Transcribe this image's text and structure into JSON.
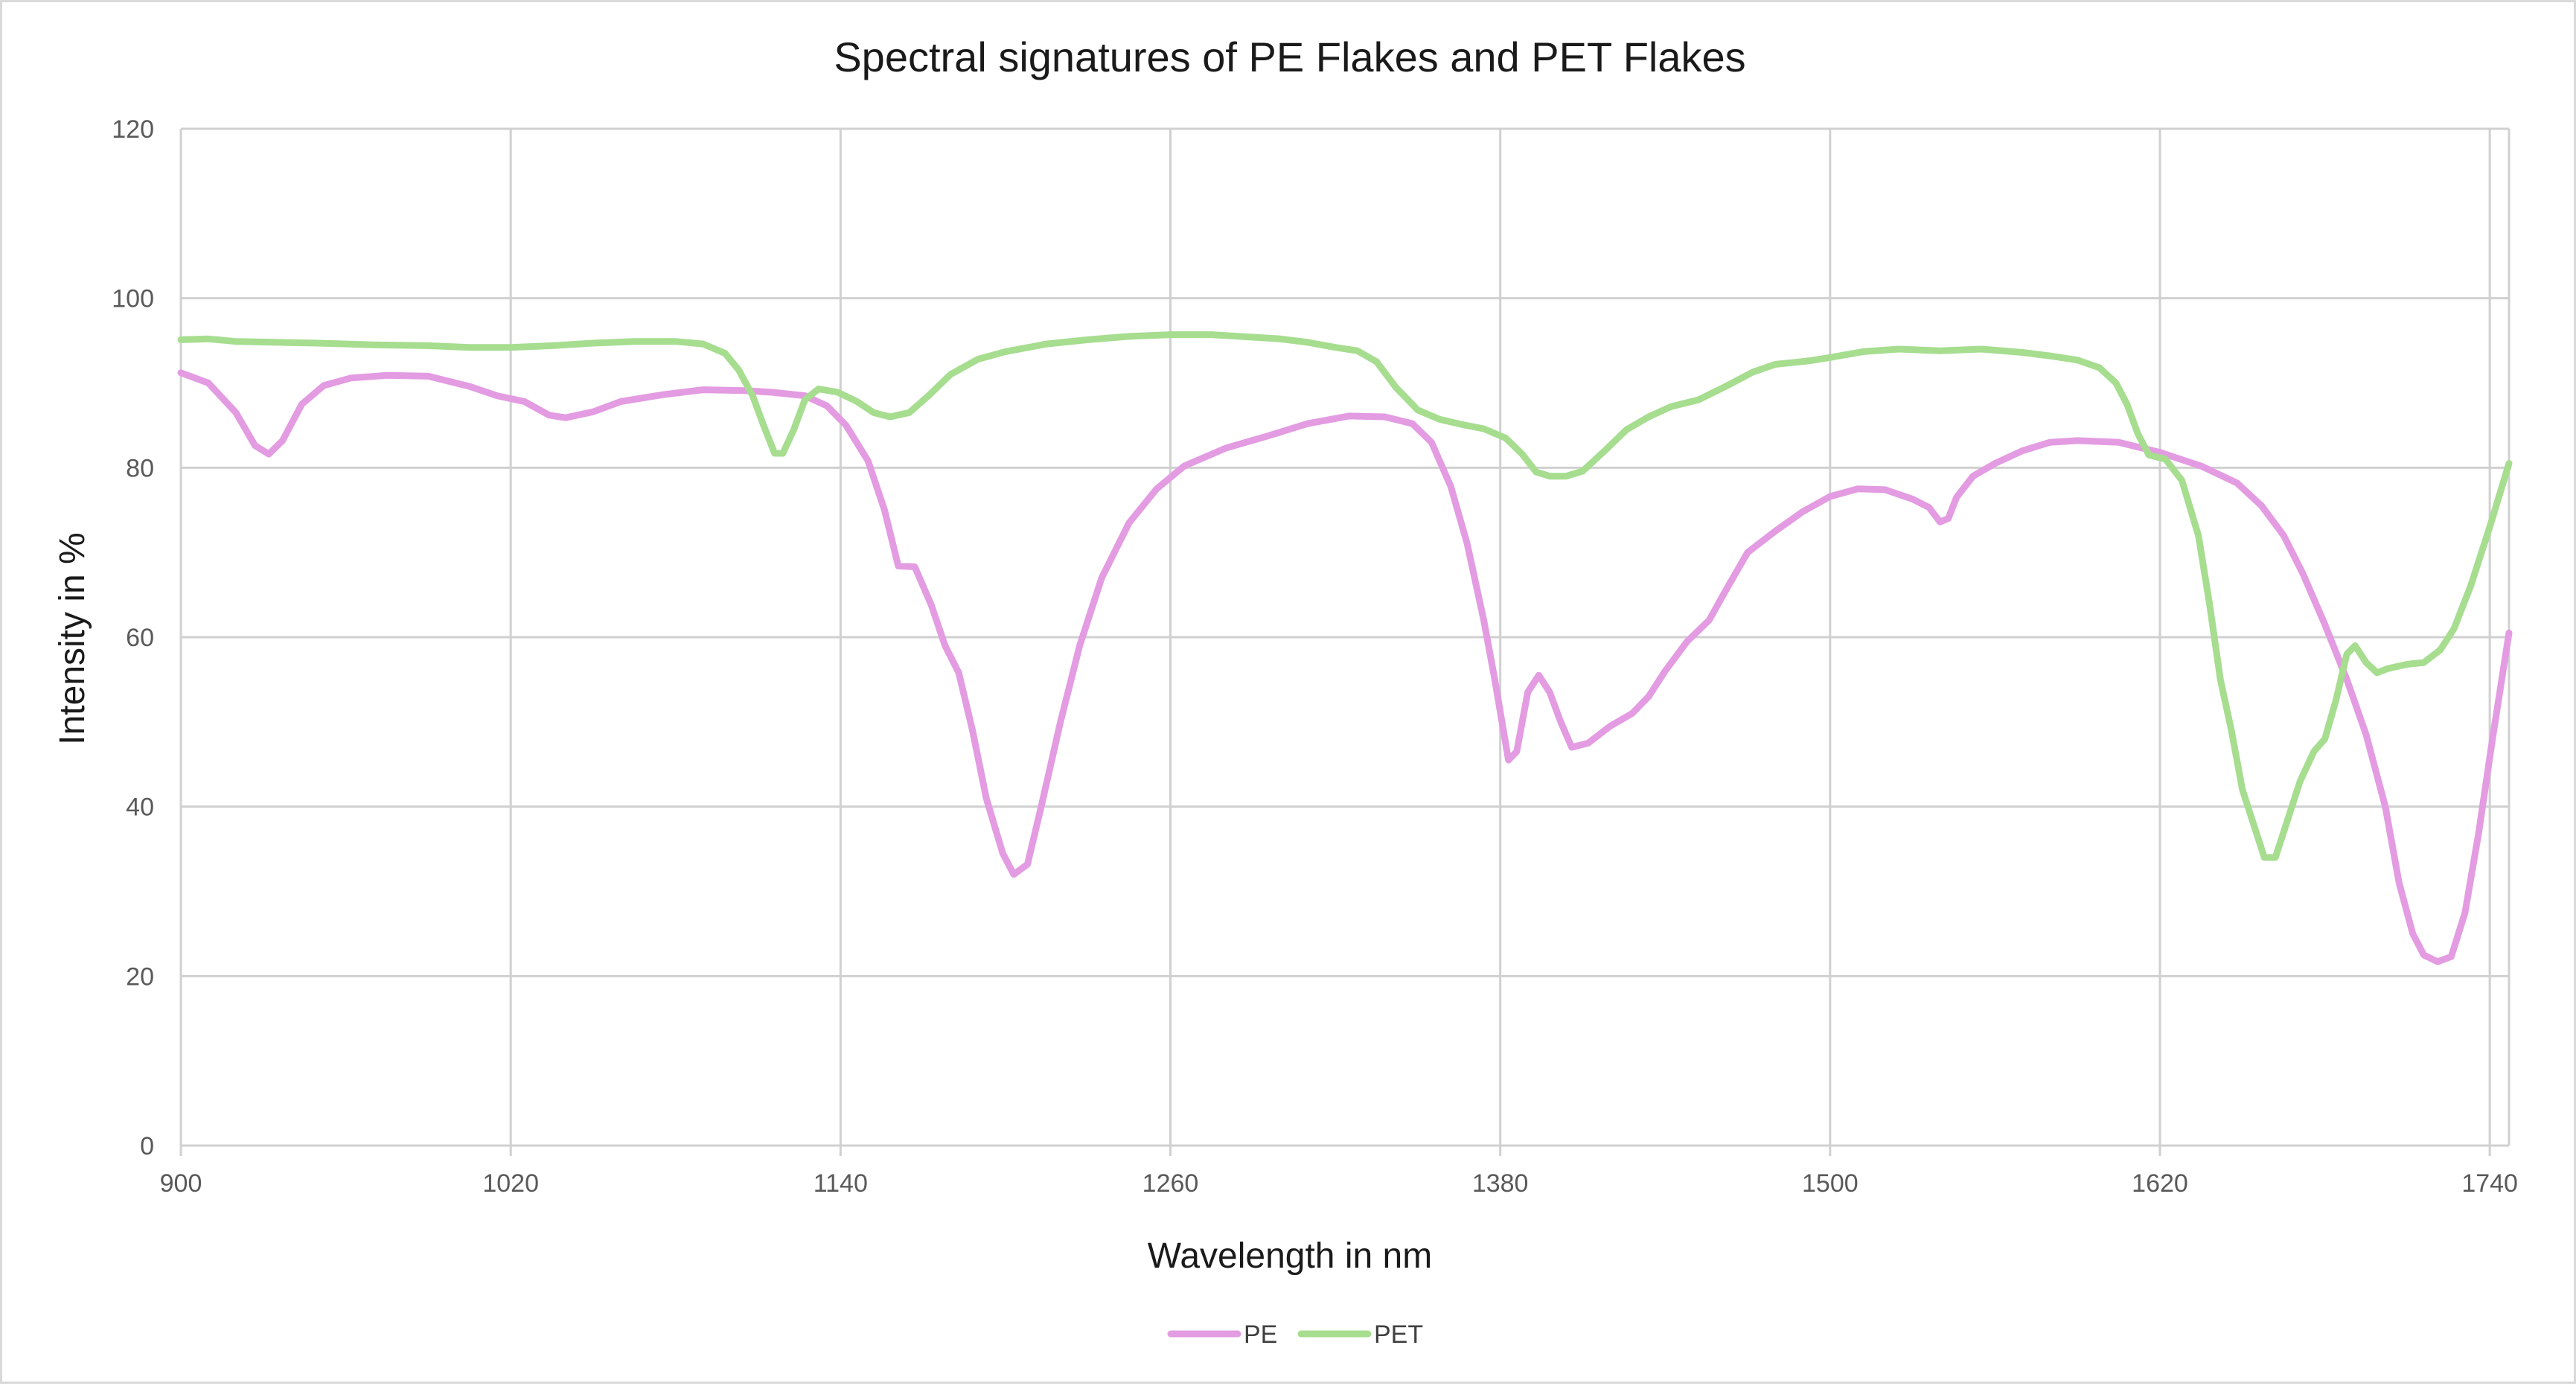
{
  "chart_data": {
    "type": "line",
    "title": "Spectral signatures of  PE Flakes and PET Flakes",
    "xlabel": "Wavelength in nm",
    "ylabel": "Intensity in %",
    "xlim": [
      900,
      1747
    ],
    "ylim": [
      0,
      120
    ],
    "x_ticks": [
      900,
      1020,
      1140,
      1260,
      1380,
      1500,
      1620,
      1740
    ],
    "y_ticks": [
      0,
      20,
      40,
      60,
      80,
      100,
      120
    ],
    "x_tick_labels": [
      "900",
      "1020",
      "1140",
      "1260",
      "1380",
      "1500",
      "1620",
      "1740"
    ],
    "y_tick_labels": [
      "0",
      "20",
      "40",
      "60",
      "80",
      "100",
      "120"
    ],
    "grid": "both",
    "legend_position": "bottom",
    "series": [
      {
        "name": "PE",
        "color": "#e39be2",
        "points": [
          [
            900,
            91.2
          ],
          [
            910,
            90.0
          ],
          [
            920,
            86.5
          ],
          [
            927,
            82.6
          ],
          [
            932,
            81.6
          ],
          [
            937,
            83.2
          ],
          [
            944,
            87.5
          ],
          [
            952,
            89.7
          ],
          [
            962,
            90.6
          ],
          [
            975,
            90.9
          ],
          [
            990,
            90.8
          ],
          [
            1005,
            89.6
          ],
          [
            1015,
            88.5
          ],
          [
            1025,
            87.8
          ],
          [
            1034,
            86.2
          ],
          [
            1040,
            85.9
          ],
          [
            1050,
            86.6
          ],
          [
            1060,
            87.8
          ],
          [
            1075,
            88.6
          ],
          [
            1090,
            89.2
          ],
          [
            1105,
            89.1
          ],
          [
            1115,
            88.9
          ],
          [
            1127,
            88.5
          ],
          [
            1135,
            87.3
          ],
          [
            1142,
            85.0
          ],
          [
            1150,
            80.8
          ],
          [
            1156,
            75.0
          ],
          [
            1161,
            68.4
          ],
          [
            1167,
            68.3
          ],
          [
            1173,
            63.8
          ],
          [
            1178,
            59.0
          ],
          [
            1183,
            55.8
          ],
          [
            1188,
            49.0
          ],
          [
            1193,
            41.0
          ],
          [
            1199,
            34.5
          ],
          [
            1203,
            32.0
          ],
          [
            1208,
            33.2
          ],
          [
            1213,
            40.0
          ],
          [
            1220,
            50.0
          ],
          [
            1227,
            59.0
          ],
          [
            1235,
            67.0
          ],
          [
            1245,
            73.5
          ],
          [
            1255,
            77.5
          ],
          [
            1265,
            80.2
          ],
          [
            1280,
            82.3
          ],
          [
            1295,
            83.7
          ],
          [
            1310,
            85.2
          ],
          [
            1325,
            86.1
          ],
          [
            1338,
            86.0
          ],
          [
            1348,
            85.2
          ],
          [
            1355,
            83.0
          ],
          [
            1362,
            77.8
          ],
          [
            1368,
            71.0
          ],
          [
            1374,
            62.0
          ],
          [
            1378,
            55.0
          ],
          [
            1383,
            45.5
          ],
          [
            1386,
            46.5
          ],
          [
            1390,
            53.5
          ],
          [
            1394,
            55.5
          ],
          [
            1398,
            53.5
          ],
          [
            1402,
            50.0
          ],
          [
            1406,
            47.0
          ],
          [
            1412,
            47.5
          ],
          [
            1420,
            49.5
          ],
          [
            1428,
            51.0
          ],
          [
            1434,
            53.0
          ],
          [
            1440,
            56.0
          ],
          [
            1448,
            59.5
          ],
          [
            1456,
            62.0
          ],
          [
            1462,
            65.5
          ],
          [
            1470,
            70.0
          ],
          [
            1480,
            72.5
          ],
          [
            1490,
            74.8
          ],
          [
            1500,
            76.6
          ],
          [
            1510,
            77.5
          ],
          [
            1520,
            77.4
          ],
          [
            1530,
            76.3
          ],
          [
            1536,
            75.3
          ],
          [
            1540,
            73.6
          ],
          [
            1543,
            74.0
          ],
          [
            1546,
            76.5
          ],
          [
            1552,
            79.0
          ],
          [
            1560,
            80.5
          ],
          [
            1570,
            82.0
          ],
          [
            1580,
            83.0
          ],
          [
            1590,
            83.2
          ],
          [
            1605,
            83.0
          ],
          [
            1620,
            81.8
          ],
          [
            1635,
            80.2
          ],
          [
            1648,
            78.2
          ],
          [
            1657,
            75.5
          ],
          [
            1665,
            72.0
          ],
          [
            1672,
            67.5
          ],
          [
            1680,
            61.5
          ],
          [
            1688,
            55.0
          ],
          [
            1695,
            48.5
          ],
          [
            1702,
            40.0
          ],
          [
            1707,
            31.0
          ],
          [
            1712,
            25.0
          ],
          [
            1716,
            22.5
          ],
          [
            1721,
            21.7
          ],
          [
            1726,
            22.3
          ],
          [
            1731,
            27.5
          ],
          [
            1736,
            37.0
          ],
          [
            1741,
            48.0
          ],
          [
            1747,
            60.5
          ]
        ]
      },
      {
        "name": "PET",
        "color": "#a6dd8f",
        "points": [
          [
            900,
            95.1
          ],
          [
            910,
            95.2
          ],
          [
            920,
            94.9
          ],
          [
            935,
            94.8
          ],
          [
            950,
            94.7
          ],
          [
            970,
            94.5
          ],
          [
            990,
            94.4
          ],
          [
            1005,
            94.2
          ],
          [
            1020,
            94.2
          ],
          [
            1035,
            94.4
          ],
          [
            1050,
            94.7
          ],
          [
            1065,
            94.9
          ],
          [
            1080,
            94.9
          ],
          [
            1090,
            94.6
          ],
          [
            1098,
            93.5
          ],
          [
            1103,
            91.5
          ],
          [
            1108,
            88.5
          ],
          [
            1112,
            85.0
          ],
          [
            1116,
            81.7
          ],
          [
            1119,
            81.7
          ],
          [
            1123,
            84.5
          ],
          [
            1127,
            88.0
          ],
          [
            1132,
            89.3
          ],
          [
            1139,
            88.9
          ],
          [
            1146,
            87.8
          ],
          [
            1152,
            86.5
          ],
          [
            1158,
            86.0
          ],
          [
            1165,
            86.5
          ],
          [
            1172,
            88.5
          ],
          [
            1180,
            91.0
          ],
          [
            1190,
            92.8
          ],
          [
            1200,
            93.7
          ],
          [
            1215,
            94.6
          ],
          [
            1230,
            95.1
          ],
          [
            1245,
            95.5
          ],
          [
            1260,
            95.7
          ],
          [
            1275,
            95.7
          ],
          [
            1290,
            95.4
          ],
          [
            1300,
            95.2
          ],
          [
            1310,
            94.8
          ],
          [
            1320,
            94.2
          ],
          [
            1328,
            93.8
          ],
          [
            1335,
            92.5
          ],
          [
            1342,
            89.5
          ],
          [
            1350,
            86.8
          ],
          [
            1358,
            85.7
          ],
          [
            1366,
            85.1
          ],
          [
            1374,
            84.6
          ],
          [
            1382,
            83.5
          ],
          [
            1388,
            81.6
          ],
          [
            1393,
            79.5
          ],
          [
            1398,
            79.0
          ],
          [
            1404,
            79.0
          ],
          [
            1410,
            79.6
          ],
          [
            1418,
            82.0
          ],
          [
            1426,
            84.5
          ],
          [
            1434,
            86.0
          ],
          [
            1442,
            87.2
          ],
          [
            1452,
            88.0
          ],
          [
            1462,
            89.6
          ],
          [
            1472,
            91.3
          ],
          [
            1480,
            92.2
          ],
          [
            1492,
            92.6
          ],
          [
            1500,
            93.0
          ],
          [
            1512,
            93.7
          ],
          [
            1525,
            94.0
          ],
          [
            1540,
            93.8
          ],
          [
            1555,
            94.0
          ],
          [
            1570,
            93.6
          ],
          [
            1580,
            93.2
          ],
          [
            1590,
            92.7
          ],
          [
            1598,
            91.8
          ],
          [
            1604,
            90.0
          ],
          [
            1608,
            87.5
          ],
          [
            1612,
            84.0
          ],
          [
            1616,
            81.5
          ],
          [
            1622,
            81.0
          ],
          [
            1628,
            78.5
          ],
          [
            1634,
            72.0
          ],
          [
            1638,
            64.0
          ],
          [
            1642,
            55.0
          ],
          [
            1646,
            49.0
          ],
          [
            1650,
            42.0
          ],
          [
            1654,
            38.0
          ],
          [
            1658,
            34.0
          ],
          [
            1662,
            34.0
          ],
          [
            1666,
            38.0
          ],
          [
            1671,
            43.0
          ],
          [
            1676,
            46.5
          ],
          [
            1680,
            48.0
          ],
          [
            1684,
            52.5
          ],
          [
            1688,
            58.0
          ],
          [
            1691,
            59.0
          ],
          [
            1695,
            57.0
          ],
          [
            1699,
            55.8
          ],
          [
            1703,
            56.3
          ],
          [
            1710,
            56.8
          ],
          [
            1716,
            57.0
          ],
          [
            1722,
            58.5
          ],
          [
            1727,
            61.0
          ],
          [
            1733,
            66.0
          ],
          [
            1740,
            73.0
          ],
          [
            1747,
            80.5
          ]
        ]
      }
    ]
  }
}
